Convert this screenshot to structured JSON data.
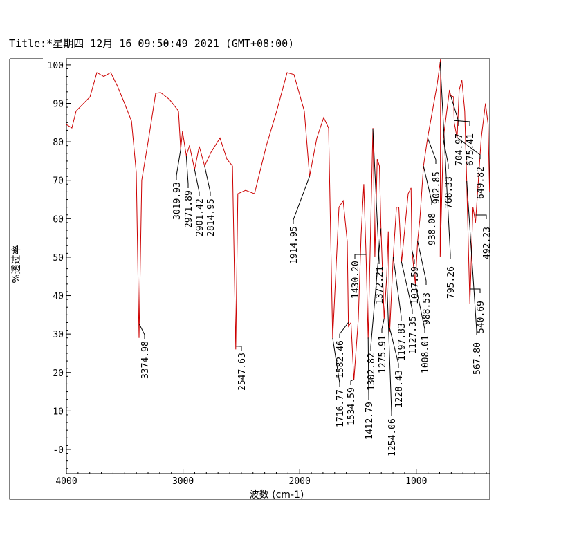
{
  "chart_data": {
    "type": "line",
    "title": "Title:*星期四 12月 16 09:50:49 2021 (GMT+08:00)",
    "xlabel": "波数 (cm-1)",
    "ylabel": "%透过率",
    "xlim": [
      4000,
      370
    ],
    "ylim": [
      -6.3,
      101.6
    ],
    "x_reversed": true,
    "grid": false,
    "x_ticks": [
      "4000",
      "3000",
      "2000",
      "1000"
    ],
    "x_tick_values": [
      4000,
      3000,
      2000,
      1000
    ],
    "y_ticks": [
      "100",
      "90",
      "80",
      "70",
      "60",
      "50",
      "40",
      "30",
      "20",
      "10",
      "-0"
    ],
    "y_tick_values": [
      100,
      90,
      80,
      70,
      60,
      50,
      40,
      30,
      20,
      10,
      0
    ],
    "line_color": "#cc0000",
    "series": [
      {
        "points": [
          [
            4000,
            84.5
          ],
          [
            3953,
            83.6
          ],
          [
            3917,
            88
          ],
          [
            3798,
            91.7
          ],
          [
            3739,
            98
          ],
          [
            3680,
            97
          ],
          [
            3620,
            98
          ],
          [
            3561,
            94.4
          ],
          [
            3502,
            90
          ],
          [
            3442,
            85.4
          ],
          [
            3401,
            72
          ],
          [
            3377,
            29
          ],
          [
            3354,
            70
          ],
          [
            3294,
            81
          ],
          [
            3235,
            92.6
          ],
          [
            3193,
            92.8
          ],
          [
            3116,
            91
          ],
          [
            3039,
            88
          ],
          [
            3020,
            78
          ],
          [
            3005,
            82.7
          ],
          [
            2972,
            76.4
          ],
          [
            2945,
            79
          ],
          [
            2901,
            72.8
          ],
          [
            2861,
            78.8
          ],
          [
            2815,
            73.7
          ],
          [
            2760,
            77.3
          ],
          [
            2683,
            81
          ],
          [
            2624,
            75.5
          ],
          [
            2576,
            73.7
          ],
          [
            2548,
            26
          ],
          [
            2530,
            66.5
          ],
          [
            2464,
            67.4
          ],
          [
            2387,
            66.5
          ],
          [
            2286,
            79
          ],
          [
            2197,
            88
          ],
          [
            2108,
            98
          ],
          [
            2049,
            97.5
          ],
          [
            1960,
            88
          ],
          [
            1915,
            71
          ],
          [
            1853,
            81
          ],
          [
            1794,
            86.3
          ],
          [
            1752,
            83.6
          ],
          [
            1717,
            28.8
          ],
          [
            1663,
            63
          ],
          [
            1627,
            64.7
          ],
          [
            1592,
            54
          ],
          [
            1582,
            32
          ],
          [
            1560,
            33
          ],
          [
            1535,
            18
          ],
          [
            1497,
            34
          ],
          [
            1473,
            55.8
          ],
          [
            1450,
            69
          ],
          [
            1430,
            49.5
          ],
          [
            1413,
            28.8
          ],
          [
            1372,
            83.6
          ],
          [
            1355,
            50
          ],
          [
            1335,
            75.5
          ],
          [
            1316,
            73.7
          ],
          [
            1303,
            57.6
          ],
          [
            1276,
            34
          ],
          [
            1254,
            45
          ],
          [
            1240,
            56.7
          ],
          [
            1228,
            30.6
          ],
          [
            1198,
            50
          ],
          [
            1170,
            63
          ],
          [
            1150,
            63
          ],
          [
            1127,
            48.6
          ],
          [
            1070,
            66.5
          ],
          [
            1045,
            68
          ],
          [
            1038,
            52
          ],
          [
            1008,
            43
          ],
          [
            989,
            54
          ],
          [
            969,
            60
          ],
          [
            938,
            73.7
          ],
          [
            903,
            81
          ],
          [
            862,
            88
          ],
          [
            821,
            95
          ],
          [
            791,
            101.6
          ],
          [
            795,
            50
          ],
          [
            768,
            81
          ],
          [
            715,
            93.5
          ],
          [
            705,
            92
          ],
          [
            680,
            91.7
          ],
          [
            675,
            85
          ],
          [
            650,
            81
          ],
          [
            632,
            93.5
          ],
          [
            609,
            96
          ],
          [
            585,
            88
          ],
          [
            568,
            70
          ],
          [
            541,
            37.8
          ],
          [
            514,
            63
          ],
          [
            492,
            59
          ],
          [
            443,
            81
          ],
          [
            407,
            90
          ],
          [
            384,
            84.5
          ],
          [
            372,
            67
          ]
        ]
      }
    ],
    "peaks": [
      {
        "wn": 3374.98,
        "label": "3374.98"
      },
      {
        "wn": 3019.93,
        "label": "3019.93"
      },
      {
        "wn": 2971.89,
        "label": "2971.89"
      },
      {
        "wn": 2901.42,
        "label": "2901.42"
      },
      {
        "wn": 2814.95,
        "label": "2814.95"
      },
      {
        "wn": 2547.63,
        "label": "2547.63"
      },
      {
        "wn": 1914.95,
        "label": "1914.95"
      },
      {
        "wn": 1716.77,
        "label": "1716.77"
      },
      {
        "wn": 1582.46,
        "label": "1582.46"
      },
      {
        "wn": 1534.59,
        "label": "1534.59"
      },
      {
        "wn": 1430.2,
        "label": "1430.20"
      },
      {
        "wn": 1412.79,
        "label": "1412.79"
      },
      {
        "wn": 1302.82,
        "label": "1302.82"
      },
      {
        "wn": 1372.21,
        "label": "1372.21"
      },
      {
        "wn": 1275.91,
        "label": "1275.91"
      },
      {
        "wn": 1254.06,
        "label": "1254.06"
      },
      {
        "wn": 1228.43,
        "label": "1228.43"
      },
      {
        "wn": 1197.83,
        "label": "1197.83"
      },
      {
        "wn": 1127.35,
        "label": "1127.35"
      },
      {
        "wn": 1037.59,
        "label": "1037.59"
      },
      {
        "wn": 1008.01,
        "label": "1008.01"
      },
      {
        "wn": 988.53,
        "label": "988.53"
      },
      {
        "wn": 938.08,
        "label": "938.08"
      },
      {
        "wn": 902.85,
        "label": "902.85"
      },
      {
        "wn": 795.26,
        "label": "795.26"
      },
      {
        "wn": 768.33,
        "label": "768.33"
      },
      {
        "wn": 675.41,
        "label": "675.41"
      },
      {
        "wn": 704.97,
        "label": "704.97"
      },
      {
        "wn": 649.82,
        "label": "649.82"
      },
      {
        "wn": 567.8,
        "label": "567.80"
      },
      {
        "wn": 540.69,
        "label": "540.69"
      },
      {
        "wn": 492.23,
        "label": "492.23"
      }
    ]
  }
}
